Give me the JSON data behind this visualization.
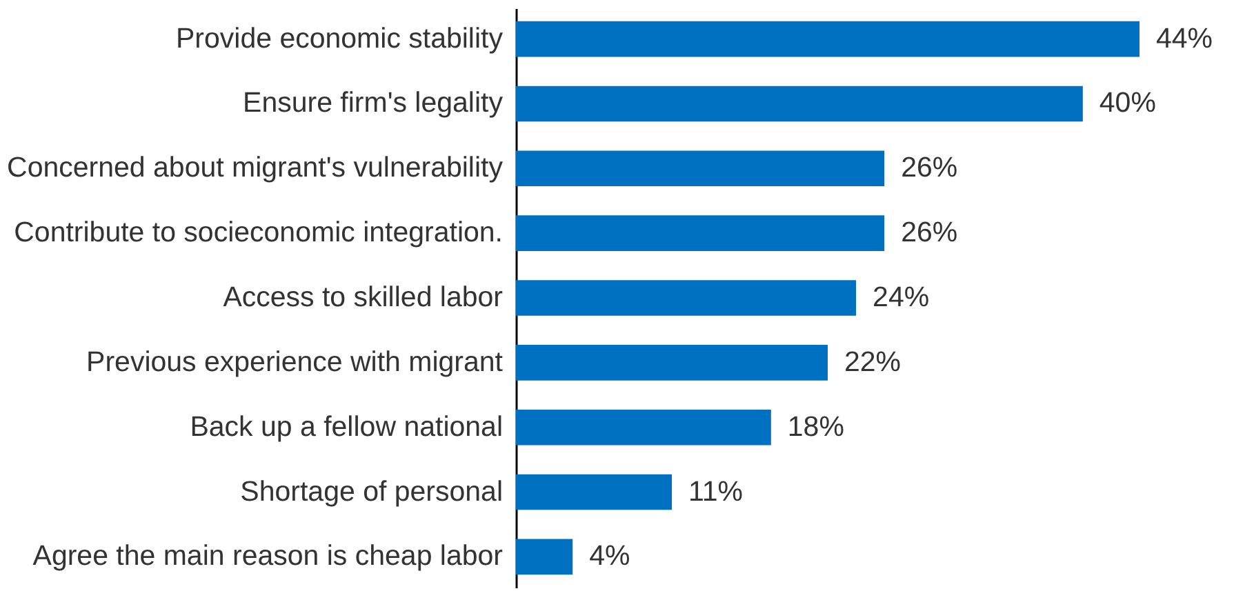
{
  "chart_data": {
    "type": "bar",
    "orientation": "horizontal",
    "categories": [
      "Provide economic stability",
      "Ensure firm's legality",
      "Concerned about migrant's vulnerability",
      "Contribute to socieconomic integration.",
      "Access to skilled labor",
      "Previous experience with migrant",
      "Back up a fellow national",
      "Shortage of personal",
      "Agree the main reason is cheap labor"
    ],
    "values": [
      44,
      40,
      26,
      26,
      24,
      22,
      18,
      11,
      4
    ],
    "value_labels": [
      "44%",
      "40%",
      "26%",
      "26%",
      "24%",
      "22%",
      "18%",
      "11%",
      "4%"
    ],
    "color": "#0070c0"
  }
}
